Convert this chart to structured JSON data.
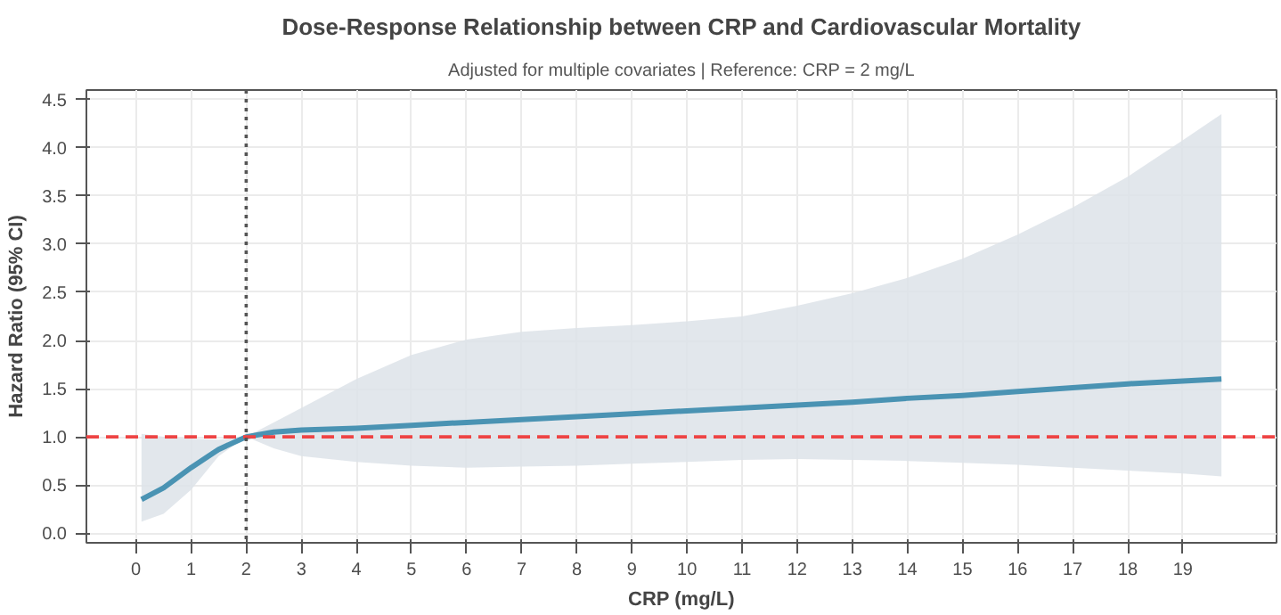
{
  "chart_data": {
    "type": "line",
    "title": "Dose-Response Relationship between CRP and Cardiovascular Mortality",
    "subtitle": "Adjusted for multiple covariates | Reference: CRP = 2 mg/L",
    "xlabel": "CRP (mg/L)",
    "ylabel": "Hazard Ratio (95% CI)",
    "x": [
      0.1,
      0.5,
      1,
      1.5,
      2,
      2.5,
      3,
      4,
      5,
      6,
      7,
      8,
      9,
      10,
      11,
      12,
      13,
      14,
      15,
      16,
      17,
      18,
      19,
      19.7
    ],
    "series": [
      {
        "color": "#4a93b3",
        "values": [
          0.35,
          0.47,
          0.68,
          0.87,
          1.0,
          1.05,
          1.07,
          1.09,
          1.12,
          1.15,
          1.18,
          1.21,
          1.24,
          1.27,
          1.3,
          1.33,
          1.36,
          1.4,
          1.43,
          1.47,
          1.51,
          1.55,
          1.58,
          1.6
        ],
        "upper": [
          1.03,
          1.0,
          0.98,
          0.97,
          1.0,
          1.15,
          1.3,
          1.6,
          1.85,
          2.01,
          2.09,
          2.13,
          2.16,
          2.2,
          2.25,
          2.36,
          2.49,
          2.65,
          2.85,
          3.1,
          3.38,
          3.7,
          4.08,
          4.35
        ],
        "lower": [
          0.12,
          0.2,
          0.45,
          0.8,
          1.0,
          0.88,
          0.8,
          0.74,
          0.7,
          0.68,
          0.69,
          0.7,
          0.72,
          0.74,
          0.76,
          0.77,
          0.76,
          0.75,
          0.73,
          0.71,
          0.68,
          0.65,
          0.62,
          0.59
        ]
      }
    ],
    "xlim": [
      -0.9,
      20.7
    ],
    "ylim": [
      -0.1,
      4.6
    ],
    "xticks": [
      0,
      1,
      2,
      3,
      4,
      5,
      6,
      7,
      8,
      9,
      10,
      11,
      12,
      13,
      14,
      15,
      16,
      17,
      18,
      19
    ],
    "yticks": [
      {
        "value": 0,
        "label": "0.0"
      },
      {
        "value": 0.5,
        "label": "0.5"
      },
      {
        "value": 1,
        "label": "1.0"
      },
      {
        "value": 1.5,
        "label": "1.5"
      },
      {
        "value": 2,
        "label": "2.0"
      },
      {
        "value": 2.5,
        "label": "2.5"
      },
      {
        "value": 3,
        "label": "3.0"
      },
      {
        "value": 3.5,
        "label": "3.5"
      },
      {
        "value": 4,
        "label": "4.0"
      },
      {
        "value": 4.5,
        "label": "4.5"
      }
    ],
    "ref_lines": [
      {
        "axis": "y",
        "value": 1,
        "color": "#ee4444",
        "line_style": "dashed"
      },
      {
        "axis": "x",
        "value": 2,
        "color": "#555555",
        "line_style": "dotted"
      }
    ],
    "grid": true,
    "line_style": "solid"
  }
}
